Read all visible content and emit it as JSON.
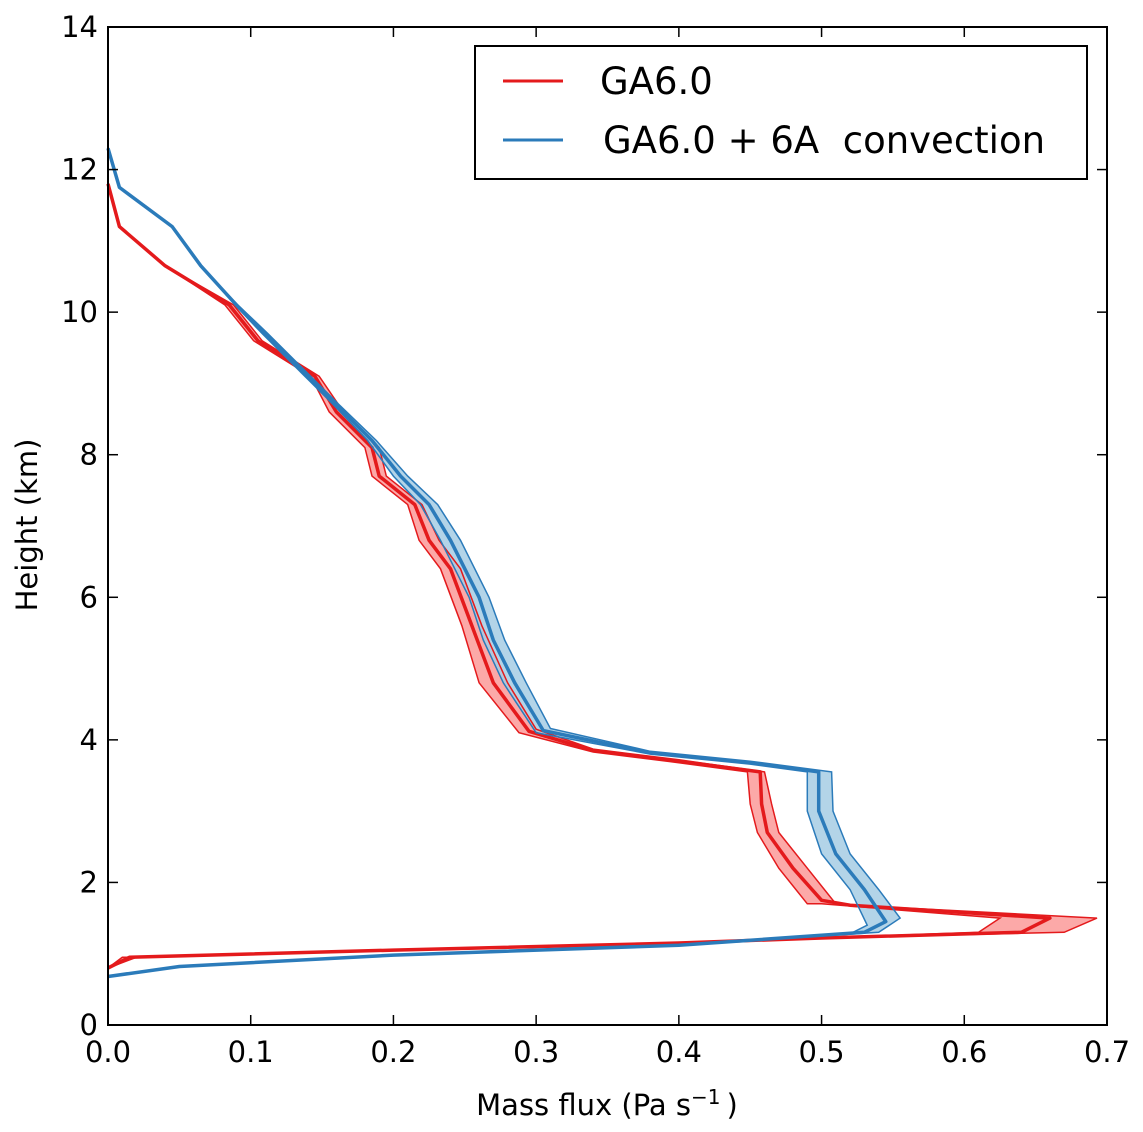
{
  "chart_data": {
    "type": "line",
    "xlabel": "Mass flux (Pa s",
    "xlabel_sup": "−1",
    "xlabel_end": ")",
    "ylabel": "Height (km)",
    "xlim": [
      0,
      0.7
    ],
    "ylim": [
      0,
      14
    ],
    "x_ticks": [
      "0.0",
      "0.1",
      "0.2",
      "0.3",
      "0.4",
      "0.5",
      "0.6",
      "0.7"
    ],
    "y_ticks": [
      "0",
      "2",
      "4",
      "6",
      "8",
      "10",
      "12",
      "14"
    ],
    "legend_position": "top-right",
    "series": [
      {
        "name": "GA6.0",
        "color": "#e41a1c",
        "fill": "#fb9a99",
        "mean": [
          [
            0.0,
            0.8
          ],
          [
            0.015,
            0.95
          ],
          [
            0.2,
            1.05
          ],
          [
            0.4,
            1.15
          ],
          [
            0.5,
            1.22
          ],
          [
            0.64,
            1.3
          ],
          [
            0.66,
            1.5
          ],
          [
            0.52,
            1.68
          ],
          [
            0.5,
            1.75
          ],
          [
            0.48,
            2.2
          ],
          [
            0.462,
            2.7
          ],
          [
            0.458,
            3.1
          ],
          [
            0.457,
            3.55
          ],
          [
            0.4,
            3.7
          ],
          [
            0.34,
            3.85
          ],
          [
            0.295,
            4.12
          ],
          [
            0.27,
            4.8
          ],
          [
            0.255,
            5.6
          ],
          [
            0.24,
            6.4
          ],
          [
            0.225,
            6.8
          ],
          [
            0.215,
            7.3
          ],
          [
            0.19,
            7.7
          ],
          [
            0.185,
            8.1
          ],
          [
            0.16,
            8.6
          ],
          [
            0.145,
            9.1
          ],
          [
            0.105,
            9.6
          ],
          [
            0.085,
            10.1
          ],
          [
            0.04,
            10.65
          ],
          [
            0.008,
            11.2
          ],
          [
            0.0,
            11.8
          ]
        ],
        "upper": [
          [
            0.0,
            0.8
          ],
          [
            0.02,
            0.95
          ],
          [
            0.2,
            1.05
          ],
          [
            0.4,
            1.15
          ],
          [
            0.5,
            1.22
          ],
          [
            0.67,
            1.3
          ],
          [
            0.693,
            1.5
          ],
          [
            0.55,
            1.65
          ],
          [
            0.51,
            1.7
          ],
          [
            0.49,
            2.2
          ],
          [
            0.47,
            2.7
          ],
          [
            0.465,
            3.1
          ],
          [
            0.46,
            3.55
          ],
          [
            0.4,
            3.72
          ],
          [
            0.34,
            3.87
          ],
          [
            0.3,
            4.15
          ],
          [
            0.28,
            4.8
          ],
          [
            0.262,
            5.6
          ],
          [
            0.247,
            6.4
          ],
          [
            0.232,
            6.8
          ],
          [
            0.22,
            7.3
          ],
          [
            0.195,
            7.7
          ],
          [
            0.19,
            8.1
          ],
          [
            0.165,
            8.6
          ],
          [
            0.148,
            9.1
          ],
          [
            0.108,
            9.6
          ],
          [
            0.088,
            10.1
          ],
          [
            0.04,
            10.65
          ],
          [
            0.008,
            11.2
          ],
          [
            0.0,
            11.8
          ]
        ],
        "lower": [
          [
            0.0,
            0.8
          ],
          [
            0.01,
            0.95
          ],
          [
            0.2,
            1.05
          ],
          [
            0.4,
            1.15
          ],
          [
            0.5,
            1.22
          ],
          [
            0.61,
            1.3
          ],
          [
            0.625,
            1.5
          ],
          [
            0.5,
            1.7
          ],
          [
            0.49,
            1.7
          ],
          [
            0.47,
            2.2
          ],
          [
            0.455,
            2.7
          ],
          [
            0.45,
            3.1
          ],
          [
            0.448,
            3.55
          ],
          [
            0.4,
            3.68
          ],
          [
            0.34,
            3.83
          ],
          [
            0.288,
            4.1
          ],
          [
            0.26,
            4.8
          ],
          [
            0.248,
            5.6
          ],
          [
            0.233,
            6.4
          ],
          [
            0.218,
            6.8
          ],
          [
            0.21,
            7.3
          ],
          [
            0.185,
            7.7
          ],
          [
            0.18,
            8.1
          ],
          [
            0.155,
            8.6
          ],
          [
            0.142,
            9.1
          ],
          [
            0.102,
            9.6
          ],
          [
            0.082,
            10.1
          ],
          [
            0.04,
            10.65
          ],
          [
            0.008,
            11.2
          ],
          [
            0.0,
            11.8
          ]
        ]
      },
      {
        "name": "GA6.0 + 6A  convection",
        "color": "#2b7bba",
        "fill": "#a6cde4",
        "mean": [
          [
            0.0,
            0.68
          ],
          [
            0.05,
            0.82
          ],
          [
            0.2,
            0.98
          ],
          [
            0.4,
            1.12
          ],
          [
            0.53,
            1.3
          ],
          [
            0.545,
            1.45
          ],
          [
            0.53,
            1.9
          ],
          [
            0.51,
            2.4
          ],
          [
            0.498,
            3.0
          ],
          [
            0.498,
            3.55
          ],
          [
            0.45,
            3.68
          ],
          [
            0.38,
            3.82
          ],
          [
            0.305,
            4.13
          ],
          [
            0.285,
            4.8
          ],
          [
            0.27,
            5.4
          ],
          [
            0.26,
            6.0
          ],
          [
            0.24,
            6.8
          ],
          [
            0.225,
            7.3
          ],
          [
            0.205,
            7.7
          ],
          [
            0.185,
            8.2
          ],
          [
            0.16,
            8.7
          ],
          [
            0.14,
            9.1
          ],
          [
            0.11,
            9.7
          ],
          [
            0.09,
            10.1
          ],
          [
            0.065,
            10.65
          ],
          [
            0.045,
            11.2
          ],
          [
            0.008,
            11.75
          ],
          [
            0.0,
            12.3
          ]
        ],
        "upper": [
          [
            0.0,
            0.68
          ],
          [
            0.05,
            0.82
          ],
          [
            0.2,
            0.98
          ],
          [
            0.4,
            1.12
          ],
          [
            0.54,
            1.3
          ],
          [
            0.555,
            1.5
          ],
          [
            0.54,
            1.9
          ],
          [
            0.52,
            2.4
          ],
          [
            0.508,
            3.0
          ],
          [
            0.507,
            3.55
          ],
          [
            0.45,
            3.7
          ],
          [
            0.38,
            3.84
          ],
          [
            0.31,
            4.16
          ],
          [
            0.293,
            4.8
          ],
          [
            0.278,
            5.4
          ],
          [
            0.267,
            6.0
          ],
          [
            0.247,
            6.8
          ],
          [
            0.231,
            7.3
          ],
          [
            0.21,
            7.7
          ],
          [
            0.188,
            8.2
          ],
          [
            0.162,
            8.7
          ],
          [
            0.142,
            9.1
          ],
          [
            0.112,
            9.7
          ],
          [
            0.091,
            10.1
          ],
          [
            0.065,
            10.65
          ],
          [
            0.045,
            11.2
          ],
          [
            0.008,
            11.75
          ],
          [
            0.0,
            12.3
          ]
        ],
        "lower": [
          [
            0.0,
            0.68
          ],
          [
            0.05,
            0.82
          ],
          [
            0.2,
            0.98
          ],
          [
            0.4,
            1.12
          ],
          [
            0.52,
            1.28
          ],
          [
            0.532,
            1.4
          ],
          [
            0.52,
            1.9
          ],
          [
            0.5,
            2.4
          ],
          [
            0.49,
            3.0
          ],
          [
            0.49,
            3.55
          ],
          [
            0.45,
            3.66
          ],
          [
            0.38,
            3.8
          ],
          [
            0.3,
            4.1
          ],
          [
            0.277,
            4.8
          ],
          [
            0.263,
            5.4
          ],
          [
            0.253,
            6.0
          ],
          [
            0.233,
            6.8
          ],
          [
            0.219,
            7.3
          ],
          [
            0.2,
            7.7
          ],
          [
            0.182,
            8.2
          ],
          [
            0.158,
            8.7
          ],
          [
            0.138,
            9.1
          ],
          [
            0.108,
            9.7
          ],
          [
            0.089,
            10.1
          ],
          [
            0.065,
            10.65
          ],
          [
            0.045,
            11.2
          ],
          [
            0.008,
            11.75
          ],
          [
            0.0,
            12.3
          ]
        ]
      }
    ]
  }
}
